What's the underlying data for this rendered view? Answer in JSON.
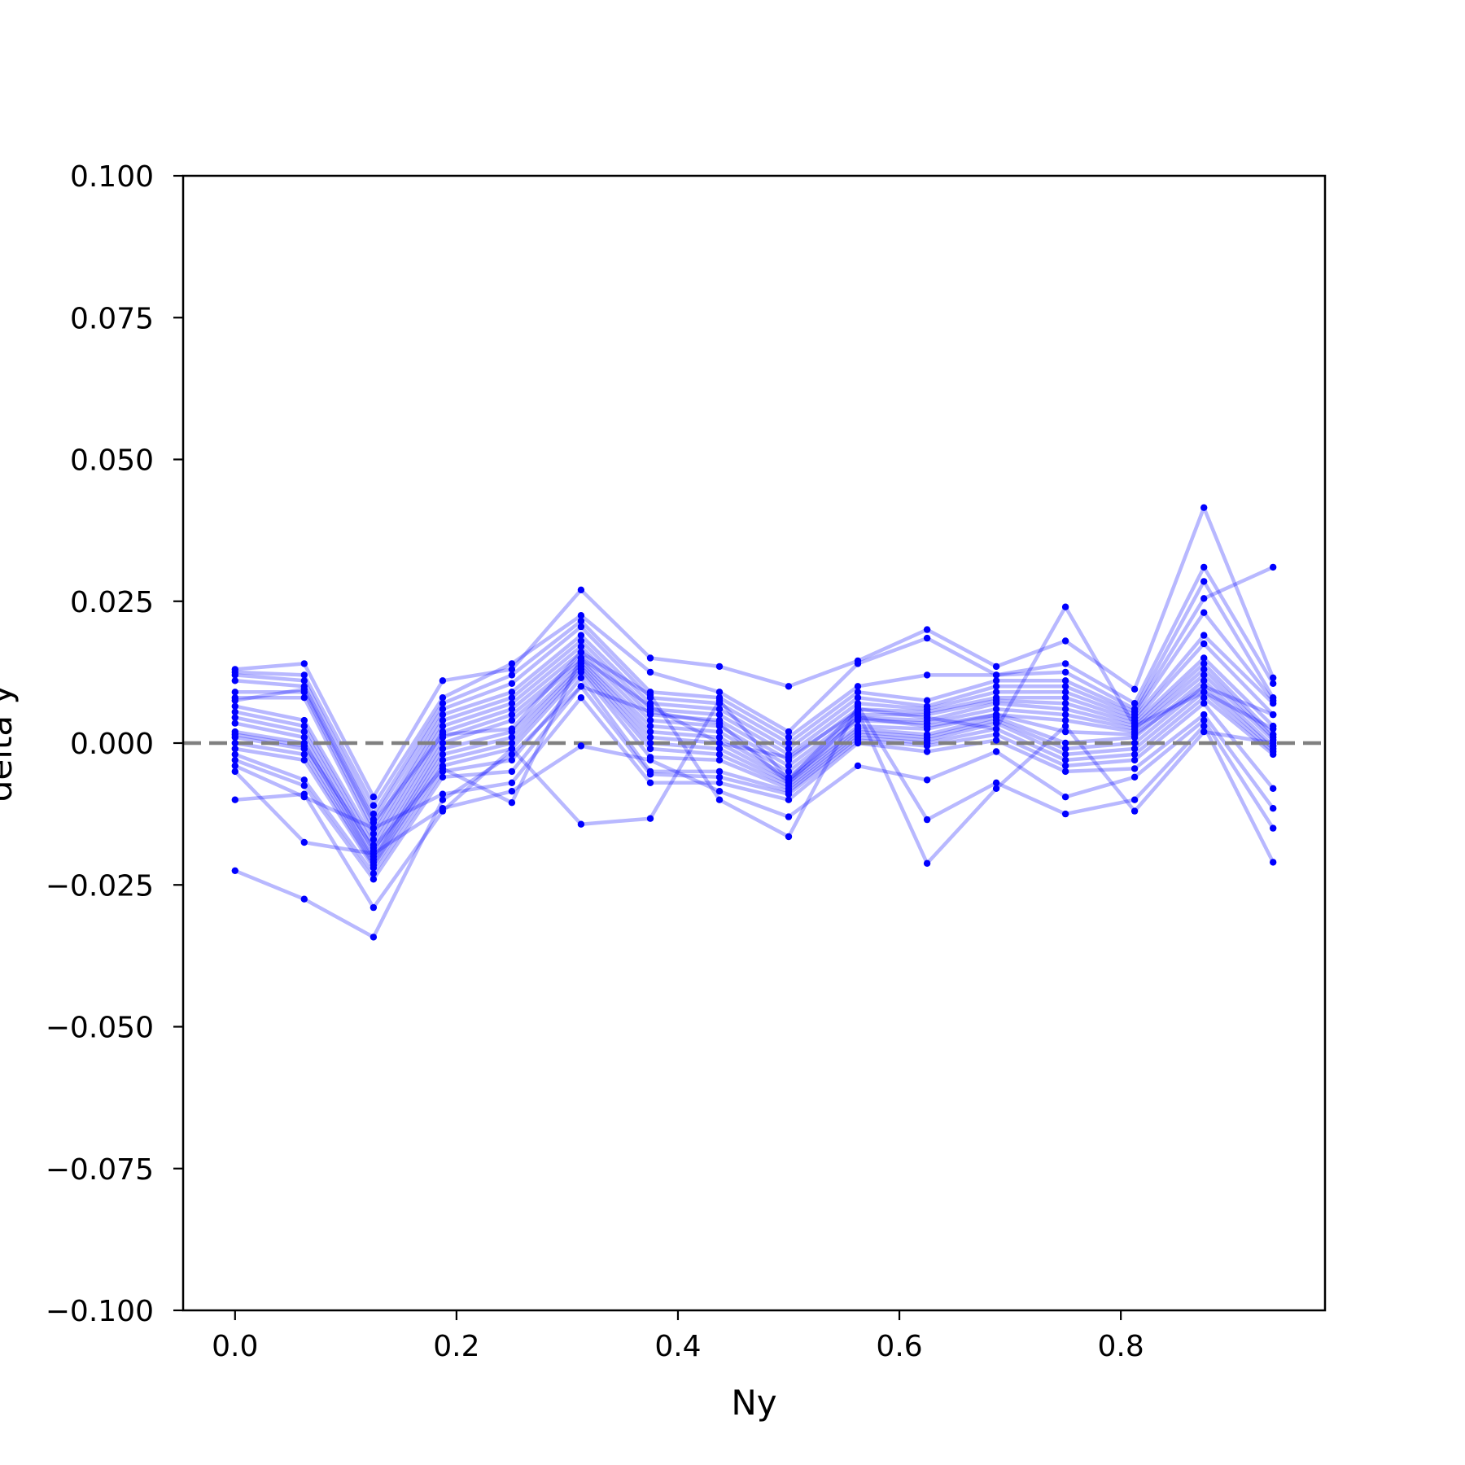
{
  "chart_data": {
    "type": "line",
    "title": "",
    "xlabel": "Ny",
    "ylabel": "delta y",
    "xlim": [
      -0.0469,
      0.9844
    ],
    "ylim": [
      -0.1,
      0.1
    ],
    "x_ticks": [
      "0.0",
      "0.2",
      "0.4",
      "0.6",
      "0.8"
    ],
    "x_tick_values": [
      0.0,
      0.2,
      0.4,
      0.6,
      0.8
    ],
    "y_ticks": [
      "0.100",
      "0.075",
      "0.050",
      "0.025",
      "0.000",
      "−0.025",
      "−0.050",
      "−0.075",
      "−0.100"
    ],
    "y_tick_values": [
      0.1,
      0.075,
      0.05,
      0.025,
      0.0,
      -0.025,
      -0.05,
      -0.075,
      -0.1
    ],
    "reference_line": {
      "y": 0.0,
      "style": "dashed",
      "color": "#808080"
    },
    "grid": false,
    "line_color": "#0000ff",
    "line_alpha": 0.28,
    "marker_color": "#0000ff",
    "x": [
      0.0,
      0.0625,
      0.125,
      0.1875,
      0.25,
      0.3125,
      0.375,
      0.4375,
      0.5,
      0.5625,
      0.625,
      0.6875,
      0.75,
      0.8125,
      0.875,
      0.9375
    ],
    "series": [
      {
        "values": [
          -0.0225,
          -0.0275,
          -0.0342,
          -0.01,
          -0.002,
          0.01,
          0.0055,
          0.0035,
          -0.007,
          0.0045,
          0.003,
          0.005,
          0.002,
          0.0015,
          0.01,
          0.005
        ]
      },
      {
        "values": [
          -0.01,
          -0.009,
          -0.029,
          -0.012,
          -0.001,
          -0.0143,
          -0.0133,
          0.0075,
          -0.0065,
          0.006,
          0.0045,
          0.0025,
          0.024,
          0.003,
          0.009,
          0.0025
        ]
      },
      {
        "values": [
          0.013,
          0.014,
          -0.0095,
          0.011,
          0.013,
          0.027,
          0.015,
          0.0135,
          0.01,
          0.0145,
          0.02,
          0.0135,
          0.018,
          0.0095,
          0.0415,
          0.0115
        ]
      },
      {
        "values": [
          0.0125,
          0.012,
          -0.011,
          0.008,
          0.014,
          0.0225,
          0.0125,
          0.009,
          0.002,
          0.014,
          0.0185,
          0.012,
          0.014,
          0.007,
          0.031,
          0.0105
        ]
      },
      {
        "values": [
          0.012,
          0.011,
          -0.0125,
          0.007,
          0.012,
          0.0215,
          0.009,
          0.008,
          0.001,
          0.01,
          0.012,
          0.012,
          0.0125,
          0.006,
          0.0285,
          0.008
        ]
      },
      {
        "values": [
          0.011,
          0.01,
          -0.0135,
          0.006,
          0.0105,
          0.0205,
          0.008,
          0.007,
          0.0,
          0.009,
          0.0075,
          0.011,
          0.011,
          0.0055,
          0.0255,
          0.031
        ]
      },
      {
        "values": [
          0.009,
          0.009,
          -0.015,
          0.005,
          0.009,
          0.019,
          0.007,
          0.006,
          -0.001,
          0.008,
          0.0065,
          0.01,
          0.01,
          0.005,
          0.023,
          0.0075
        ]
      },
      {
        "values": [
          0.008,
          0.008,
          -0.016,
          0.004,
          0.008,
          0.018,
          0.006,
          0.005,
          -0.002,
          0.007,
          0.006,
          0.009,
          0.009,
          0.0045,
          0.019,
          0.007
        ]
      },
      {
        "values": [
          0.0065,
          0.004,
          -0.017,
          0.003,
          0.007,
          0.017,
          0.005,
          0.004,
          -0.003,
          0.006,
          0.0055,
          0.008,
          0.008,
          0.004,
          0.0175,
          0.005
        ]
      },
      {
        "values": [
          0.0055,
          0.003,
          -0.018,
          0.002,
          0.006,
          0.016,
          0.004,
          0.003,
          -0.004,
          0.005,
          0.005,
          0.0075,
          0.007,
          0.0035,
          0.015,
          0.003
        ]
      },
      {
        "values": [
          0.0045,
          0.002,
          -0.019,
          0.001,
          0.005,
          0.015,
          0.003,
          0.002,
          -0.005,
          0.0045,
          0.004,
          0.007,
          0.006,
          0.003,
          0.014,
          0.0015
        ]
      },
      {
        "values": [
          0.0035,
          0.001,
          -0.02,
          0.0,
          0.004,
          0.0145,
          0.002,
          0.001,
          -0.006,
          0.004,
          0.0035,
          0.006,
          0.005,
          0.0025,
          0.013,
          0.001
        ]
      },
      {
        "values": [
          0.002,
          0.0,
          -0.0205,
          -0.001,
          0.002,
          0.014,
          0.001,
          0.0,
          -0.0065,
          0.003,
          0.0025,
          0.005,
          0.004,
          0.002,
          0.012,
          0.0005
        ]
      },
      {
        "values": [
          0.001,
          -0.001,
          -0.021,
          -0.002,
          0.001,
          0.0135,
          0.0,
          -0.001,
          -0.007,
          0.0025,
          0.0015,
          0.0045,
          0.0,
          0.001,
          0.011,
          -0.0005
        ]
      },
      {
        "values": [
          0.0,
          -0.002,
          -0.0215,
          -0.003,
          0.0,
          0.013,
          -0.001,
          -0.002,
          -0.0075,
          0.002,
          0.001,
          0.004,
          -0.001,
          0.0,
          0.01,
          -0.001
        ]
      },
      {
        "values": [
          -0.001,
          -0.003,
          -0.022,
          -0.004,
          -0.001,
          0.0125,
          -0.0025,
          -0.003,
          -0.008,
          0.0015,
          0.0005,
          0.0035,
          -0.002,
          -0.001,
          0.009,
          -0.0015
        ]
      },
      {
        "values": [
          -0.002,
          -0.0065,
          -0.023,
          -0.005,
          -0.003,
          0.0115,
          -0.005,
          -0.005,
          -0.0085,
          0.001,
          0.0,
          0.0025,
          -0.003,
          -0.002,
          0.008,
          -0.002
        ]
      },
      {
        "values": [
          -0.003,
          -0.0075,
          -0.024,
          -0.006,
          -0.005,
          0.01,
          -0.0055,
          -0.006,
          -0.009,
          0.0005,
          -0.0005,
          0.0015,
          -0.004,
          -0.003,
          0.007,
          -0.008
        ]
      },
      {
        "values": [
          -0.004,
          -0.0095,
          -0.015,
          -0.009,
          -0.007,
          0.008,
          -0.007,
          -0.007,
          -0.01,
          0.0,
          -0.0015,
          0.0005,
          -0.005,
          -0.0045,
          0.005,
          -0.0115
        ]
      },
      {
        "values": [
          -0.005,
          -0.0175,
          -0.0195,
          -0.0115,
          -0.0085,
          -0.0005,
          -0.003,
          -0.0085,
          -0.013,
          -0.004,
          -0.0065,
          -0.0015,
          -0.0095,
          -0.006,
          0.004,
          -0.015
        ]
      },
      {
        "values": [
          0.0075,
          0.0095,
          -0.014,
          0.0015,
          0.0025,
          0.016,
          0.0085,
          -0.01,
          -0.0165,
          0.0065,
          -0.0135,
          -0.007,
          -0.0125,
          -0.01,
          0.003,
          -0.021
        ]
      },
      {
        "values": [
          0.0015,
          -0.0005,
          -0.0185,
          -0.0045,
          -0.0105,
          0.015,
          0.0065,
          0.0,
          -0.0025,
          0.0055,
          -0.0212,
          -0.008,
          0.003,
          -0.012,
          0.002,
          0.0
        ]
      }
    ]
  }
}
